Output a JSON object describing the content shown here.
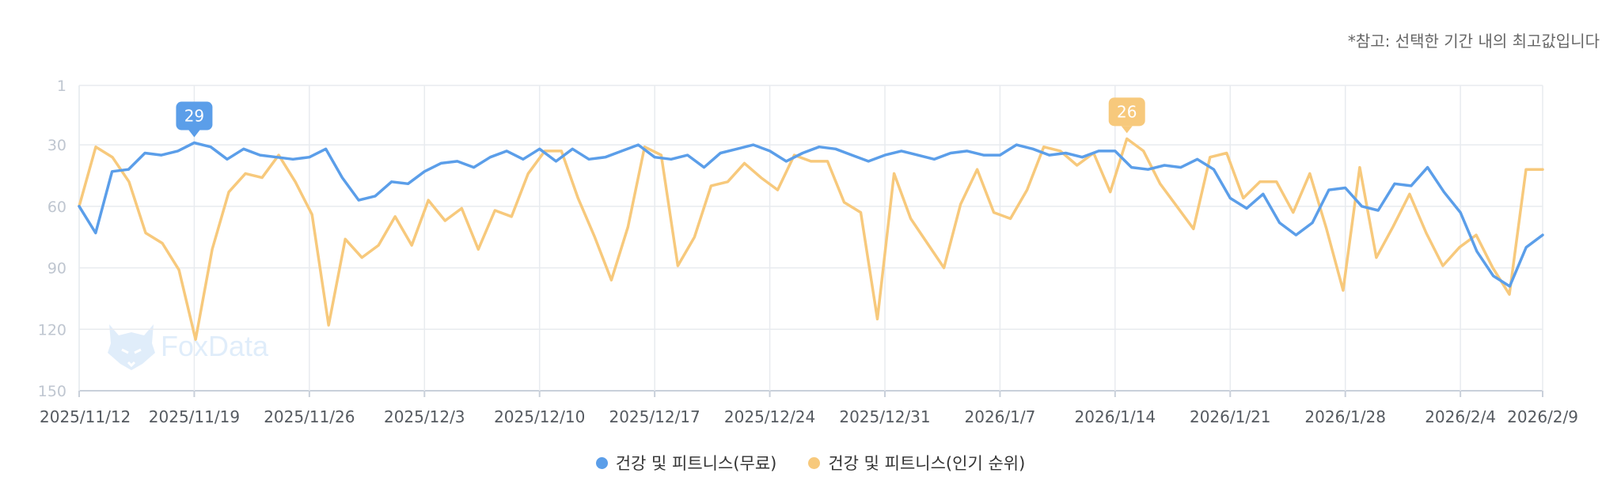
{
  "note": "*참고: 선택한 기간 내의 최고값입니다",
  "watermark": "FoxData",
  "chart_data": {
    "type": "line",
    "y_reversed": true,
    "ylim": [
      1,
      150
    ],
    "y_ticks": [
      1,
      30,
      60,
      90,
      120,
      150
    ],
    "x_ticks": [
      "2025/11/12",
      "2025/11/19",
      "2025/11/26",
      "2025/12/3",
      "2025/12/10",
      "2025/12/17",
      "2025/12/24",
      "2025/12/31",
      "2026/1/7",
      "2026/1/14",
      "2026/1/21",
      "2026/1/28",
      "2026/2/4",
      "2026/2/9"
    ],
    "x_start": "2025/11/12",
    "x_end": "2026/2/9",
    "series": [
      {
        "name": "건강 및 피트니스(무료)",
        "color": "#5b9ee9",
        "peak_label": "29",
        "values": [
          60,
          73,
          43,
          42,
          34,
          35,
          33,
          29,
          31,
          37,
          32,
          35,
          36,
          37,
          36,
          32,
          46,
          57,
          55,
          48,
          49,
          43,
          39,
          38,
          41,
          36,
          33,
          37,
          32,
          38,
          32,
          37,
          36,
          33,
          30,
          36,
          37,
          35,
          41,
          34,
          32,
          30,
          33,
          38,
          34,
          31,
          32,
          35,
          38,
          35,
          33,
          35,
          37,
          34,
          33,
          35,
          35,
          30,
          32,
          35,
          34,
          36,
          33,
          33,
          41,
          42,
          40,
          41,
          37,
          42,
          56,
          61,
          54,
          68,
          74,
          68,
          52,
          51,
          60,
          62,
          49,
          50,
          41,
          53,
          63,
          82,
          94,
          99,
          80,
          74
        ]
      },
      {
        "name": "건강 및 피트니스(인기 순위)",
        "color": "#f7c97c",
        "peak_label": "26",
        "values": [
          60,
          31,
          36,
          48,
          73,
          78,
          91,
          125,
          81,
          53,
          44,
          46,
          35,
          48,
          64,
          118,
          76,
          85,
          79,
          65,
          79,
          57,
          67,
          61,
          81,
          62,
          65,
          44,
          33,
          33,
          56,
          75,
          96,
          70,
          31,
          35,
          89,
          75,
          50,
          48,
          39,
          46,
          52,
          35,
          38,
          38,
          58,
          63,
          115,
          44,
          66,
          78,
          90,
          59,
          42,
          63,
          66,
          52,
          31,
          33,
          40,
          34,
          53,
          27,
          33,
          49,
          60,
          71,
          36,
          34,
          56,
          48,
          48,
          63,
          44,
          71,
          101,
          41,
          85,
          70,
          54,
          73,
          89,
          80,
          74,
          90,
          103,
          42,
          42
        ]
      }
    ]
  }
}
